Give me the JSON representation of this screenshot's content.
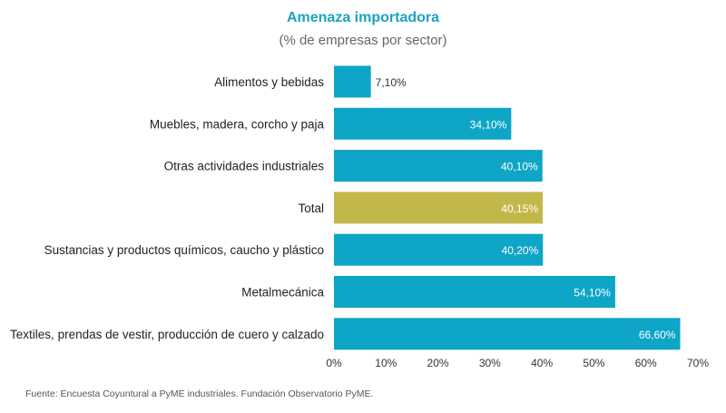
{
  "chart_data": {
    "type": "bar",
    "orientation": "horizontal",
    "title": "Amenaza importadora",
    "subtitle": "(% de empresas por sector)",
    "categories": [
      "Alimentos y bebidas",
      "Muebles, madera, corcho y paja",
      "Otras actividades industriales",
      "Total",
      "Sustancias y productos químicos, caucho y plástico",
      "Metalmecánica",
      "Textiles, prendas de vestir, producción de cuero y calzado"
    ],
    "values": [
      7.1,
      34.1,
      40.1,
      40.15,
      40.2,
      54.1,
      66.6
    ],
    "value_labels": [
      "7,10%",
      "34,10%",
      "40,10%",
      "40,15%",
      "40,20%",
      "54,10%",
      "66,60%"
    ],
    "highlight_category": "Total",
    "colors": {
      "bar": "#0ea5c6",
      "highlight": "#c2b84a"
    },
    "xlim": [
      0,
      70
    ],
    "x_ticks": [
      0,
      10,
      20,
      30,
      40,
      50,
      60,
      70
    ],
    "x_tick_labels": [
      "0%",
      "10%",
      "20%",
      "30%",
      "40%",
      "50%",
      "60%",
      "70%"
    ],
    "grid": false,
    "legend": "none"
  },
  "source": "Fuente: Encuesta Coyuntural a PyME industriales. Fundación Observatorio PyME."
}
